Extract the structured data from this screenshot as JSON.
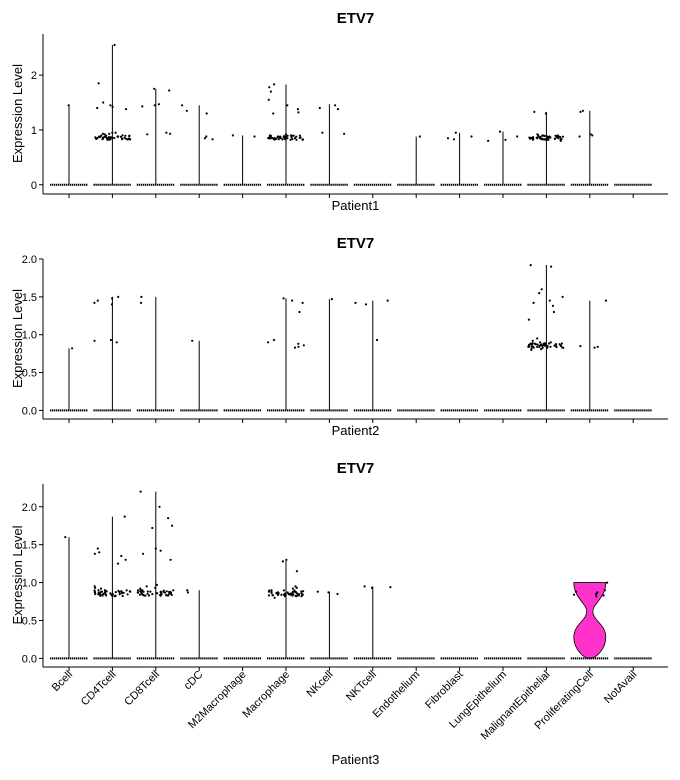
{
  "categories": [
    "Bcell",
    "CD4Tcell",
    "CD8Tcell",
    "cDC",
    "M2Macrophage",
    "Macrophage",
    "NKcell",
    "NKTcell",
    "Endothelium",
    "Fibroblast",
    "LungEpithelium",
    "MalignantEpithelial",
    "ProliferatingCell",
    "NotAvail"
  ],
  "chart_data": [
    {
      "type": "violin",
      "title": "ETV7",
      "xlabel": "Patient1",
      "ylabel": "Expression Level",
      "yticks": [
        0,
        1,
        2
      ],
      "ylim": [
        -0.15,
        2.75
      ],
      "max_values": [
        1.45,
        2.55,
        1.75,
        1.45,
        0.9,
        1.83,
        1.47,
        0,
        0.88,
        0.95,
        0.97,
        1.33,
        1.35,
        0
      ],
      "fill_color": "#ffffff",
      "jitter_points": [
        {
          "category": "Bcell",
          "values": [
            1.45
          ]
        },
        {
          "category": "CD4Tcell",
          "values": [
            2.55,
            1.85,
            1.5,
            1.45,
            1.42,
            1.4,
            1.38,
            0.95,
            0.93,
            0.92,
            0.9,
            0.88,
            0.85,
            0.95,
            0.93
          ]
        },
        {
          "category": "CD8Tcell",
          "values": [
            1.75,
            1.72,
            1.47,
            1.45,
            1.43,
            0.95,
            0.93,
            0.92
          ]
        },
        {
          "category": "cDC",
          "values": [
            1.45,
            1.35,
            1.3,
            0.88,
            0.85,
            0.83
          ]
        },
        {
          "category": "M2Macrophage",
          "values": [
            0.9,
            0.88
          ]
        },
        {
          "category": "Macrophage",
          "values": [
            1.83,
            1.78,
            1.7,
            1.55,
            1.45,
            1.38,
            1.32,
            1.3,
            0.92,
            0.9,
            0.88,
            0.87,
            0.86,
            0.85,
            0.84,
            0.83,
            0.82
          ]
        },
        {
          "category": "NKcell",
          "values": [
            1.45,
            1.4,
            1.38,
            0.95,
            0.93
          ]
        },
        {
          "category": "Endothelium",
          "values": [
            0.88
          ]
        },
        {
          "category": "Fibroblast",
          "values": [
            0.95,
            0.88,
            0.85,
            0.83
          ]
        },
        {
          "category": "LungEpithelium",
          "values": [
            0.97,
            0.88,
            0.82,
            0.8
          ]
        },
        {
          "category": "MalignantEpithelial",
          "values": [
            1.33,
            1.3,
            0.92,
            0.9,
            0.88,
            0.87,
            0.86,
            0.85,
            0.84,
            0.83,
            0.82,
            0.8
          ]
        },
        {
          "category": "ProliferatingCell",
          "values": [
            1.35,
            1.33,
            0.92,
            0.9,
            0.88
          ]
        }
      ]
    },
    {
      "type": "violin",
      "title": "ETV7",
      "xlabel": "Patient2",
      "ylabel": "Expression Level",
      "yticks": [
        0,
        0.5,
        1,
        1.5,
        2
      ],
      "ylim": [
        -0.1,
        2.0
      ],
      "max_values": [
        0.82,
        1.5,
        1.5,
        0.92,
        0,
        1.48,
        1.47,
        1.45,
        0,
        0,
        0,
        1.92,
        1.45,
        0
      ],
      "fill_color": "#ffffff",
      "jitter_points": [
        {
          "category": "Bcell",
          "values": [
            0.82
          ]
        },
        {
          "category": "CD4Tcell",
          "values": [
            1.5,
            1.48,
            1.45,
            1.42,
            1.4,
            0.93,
            0.92,
            0.9
          ]
        },
        {
          "category": "CD8Tcell",
          "values": [
            1.5,
            1.42
          ]
        },
        {
          "category": "cDC",
          "values": [
            0.92
          ]
        },
        {
          "category": "Macrophage",
          "values": [
            1.48,
            1.45,
            1.42,
            1.3,
            0.93,
            0.9,
            0.88,
            0.86,
            0.84,
            0.83
          ]
        },
        {
          "category": "NKcell",
          "values": [
            1.47
          ]
        },
        {
          "category": "NKTcell",
          "values": [
            1.45,
            1.42,
            1.4,
            0.93
          ]
        },
        {
          "category": "MalignantEpithelial",
          "values": [
            1.92,
            1.9,
            1.6,
            1.55,
            1.5,
            1.45,
            1.42,
            1.38,
            1.3,
            1.2,
            0.95,
            0.92,
            0.9,
            0.88,
            0.87,
            0.86,
            0.85,
            0.84,
            0.83,
            0.82,
            0.81,
            0.8
          ]
        },
        {
          "category": "ProliferatingCell",
          "values": [
            1.45,
            0.85,
            0.84,
            0.83
          ]
        }
      ]
    },
    {
      "type": "violin",
      "title": "ETV7",
      "xlabel": "Patient3",
      "ylabel": "Expression Level",
      "yticks": [
        0,
        0.5,
        1,
        1.5,
        2
      ],
      "ylim": [
        -0.1,
        2.3
      ],
      "max_values": [
        1.6,
        1.87,
        2.2,
        0.9,
        0,
        1.3,
        0.88,
        0.95,
        0,
        0,
        0,
        0,
        1.0,
        0
      ],
      "fill_color": "#ffffff",
      "highlight": {
        "category": "ProliferatingCell",
        "color": "#ff33cc",
        "max_value": 1.0
      },
      "jitter_points": [
        {
          "category": "Bcell",
          "values": [
            1.6
          ]
        },
        {
          "category": "CD4Tcell",
          "values": [
            1.87,
            1.45,
            1.4,
            1.38,
            1.35,
            1.3,
            1.25,
            0.95,
            0.93,
            0.92,
            0.9,
            0.88,
            0.87,
            0.85,
            0.83,
            0.82
          ]
        },
        {
          "category": "CD8Tcell",
          "values": [
            2.2,
            2.0,
            1.85,
            1.75,
            1.72,
            1.45,
            1.42,
            1.38,
            1.3,
            0.97,
            0.95,
            0.93,
            0.92,
            0.9,
            0.88,
            0.85
          ]
        },
        {
          "category": "cDC",
          "values": [
            0.9,
            0.87
          ]
        },
        {
          "category": "Macrophage",
          "values": [
            1.3,
            1.28,
            1.15,
            0.95,
            0.93,
            0.92,
            0.9,
            0.88,
            0.87,
            0.86,
            0.85,
            0.84,
            0.83,
            0.82,
            0.8
          ]
        },
        {
          "category": "NKcell",
          "values": [
            0.88,
            0.87,
            0.85
          ]
        },
        {
          "category": "NKTcell",
          "values": [
            0.95,
            0.94,
            0.93
          ]
        },
        {
          "category": "ProliferatingCell",
          "values": [
            1.0,
            0.9,
            0.88,
            0.87,
            0.85,
            0.84,
            0.83,
            0.82
          ]
        }
      ]
    }
  ]
}
